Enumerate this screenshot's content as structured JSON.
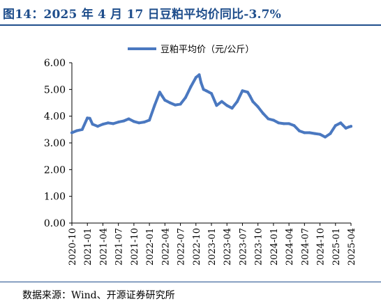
{
  "figure": {
    "title": "图14：2025 年 4 月 17 日豆粕平均价同比-3.7%",
    "source": "数据来源：Wind、开源证券研究所"
  },
  "chart_data": {
    "type": "line",
    "title": "",
    "xlabel": "",
    "ylabel": "",
    "ylim": [
      0,
      6
    ],
    "yticks": [
      "0.00",
      "1.00",
      "2.00",
      "3.00",
      "4.00",
      "5.00",
      "6.00"
    ],
    "xticks": [
      "2020-10",
      "2021-01",
      "2021-04",
      "2021-07",
      "2021-10",
      "2022-01",
      "2022-04",
      "2022-07",
      "2022-10",
      "2023-01",
      "2023-04",
      "2023-07",
      "2023-10",
      "2024-01",
      "2024-04",
      "2024-07",
      "2024-10",
      "2025-01",
      "2025-04"
    ],
    "legend_position": "top-center",
    "grid": false,
    "color": "#4a78c0",
    "series": [
      {
        "name": "豆粕平均价（元/公斤）",
        "x": [
          "2020-10",
          "2020-11",
          "2020-12",
          "2021-01",
          "2021-01-15",
          "2021-02",
          "2021-03",
          "2021-04",
          "2021-05",
          "2021-06",
          "2021-07",
          "2021-08",
          "2021-09",
          "2021-10",
          "2021-11",
          "2021-12",
          "2022-01",
          "2022-02",
          "2022-03",
          "2022-03-15",
          "2022-04",
          "2022-05",
          "2022-06",
          "2022-07",
          "2022-08",
          "2022-09",
          "2022-10",
          "2022-10-20",
          "2022-11",
          "2022-11-15",
          "2022-12",
          "2023-01",
          "2023-02",
          "2023-03",
          "2023-04",
          "2023-05",
          "2023-06",
          "2023-07",
          "2023-08",
          "2023-08-15",
          "2023-09",
          "2023-10",
          "2023-11",
          "2023-12",
          "2024-01",
          "2024-02",
          "2024-03",
          "2024-04",
          "2024-05",
          "2024-06",
          "2024-07",
          "2024-08",
          "2024-09",
          "2024-10",
          "2024-11",
          "2024-12",
          "2025-01",
          "2025-02",
          "2025-03",
          "2025-03-20",
          "2025-04"
        ],
        "values": [
          3.38,
          3.46,
          3.5,
          3.93,
          3.92,
          3.7,
          3.62,
          3.7,
          3.75,
          3.72,
          3.78,
          3.82,
          3.9,
          3.8,
          3.75,
          3.78,
          3.85,
          4.4,
          4.9,
          4.75,
          4.6,
          4.5,
          4.42,
          4.45,
          4.7,
          5.1,
          5.45,
          5.55,
          5.25,
          5.0,
          4.95,
          4.85,
          4.4,
          4.55,
          4.4,
          4.3,
          4.55,
          4.95,
          4.9,
          4.75,
          4.55,
          4.35,
          4.1,
          3.9,
          3.85,
          3.75,
          3.72,
          3.72,
          3.65,
          3.45,
          3.38,
          3.38,
          3.35,
          3.32,
          3.22,
          3.35,
          3.65,
          3.75,
          3.55,
          3.6,
          3.62
        ]
      }
    ]
  }
}
